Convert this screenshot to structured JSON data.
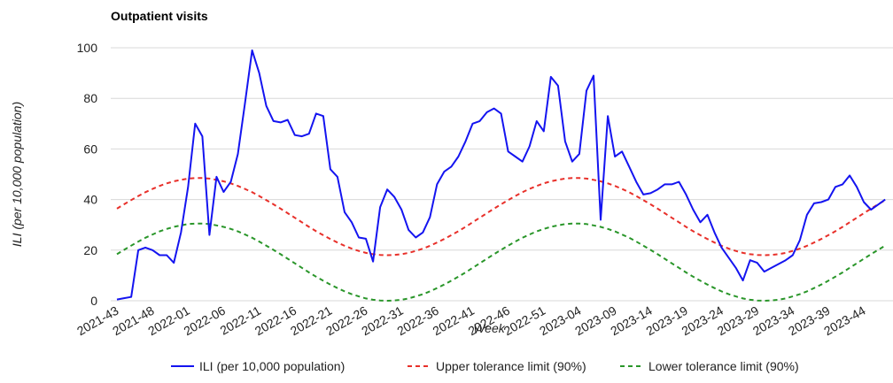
{
  "chart_data": {
    "type": "line",
    "title": "Outpatient visits",
    "x_label": "Week",
    "y_label": "ILI (per 10,000 population)",
    "categories": [
      "2021-43",
      null,
      null,
      null,
      null,
      "2021-48",
      null,
      null,
      null,
      null,
      "2022-01",
      null,
      null,
      null,
      null,
      "2022-06",
      null,
      null,
      null,
      null,
      "2022-11",
      null,
      null,
      null,
      null,
      "2022-16",
      null,
      null,
      null,
      null,
      "2022-21",
      null,
      null,
      null,
      null,
      "2022-26",
      null,
      null,
      null,
      null,
      "2022-31",
      null,
      null,
      null,
      null,
      "2022-36",
      null,
      null,
      null,
      null,
      "2022-41",
      null,
      null,
      null,
      null,
      "2022-46",
      null,
      null,
      null,
      null,
      "2022-51",
      null,
      null,
      null,
      null,
      "2023-04",
      null,
      null,
      null,
      null,
      "2023-09",
      null,
      null,
      null,
      null,
      "2023-14",
      null,
      null,
      null,
      null,
      "2023-19",
      null,
      null,
      null,
      null,
      "2023-24",
      null,
      null,
      null,
      null,
      "2023-29",
      null,
      null,
      null,
      null,
      "2023-34",
      null,
      null,
      null,
      null,
      "2023-39",
      null,
      null,
      null,
      null,
      "2023-44",
      null,
      null,
      null
    ],
    "series": [
      {
        "name": "ILI (per 10,000 population)",
        "color": "#1414f0",
        "line_style": "solid",
        "values": [
          0.5,
          1,
          1.5,
          20,
          21,
          20,
          18,
          18,
          15,
          27,
          45,
          70,
          65,
          26,
          49,
          43,
          47,
          58,
          78,
          99,
          90,
          77,
          71,
          70.5,
          71.5,
          65.5,
          65,
          66,
          74,
          73,
          52,
          49,
          35,
          31,
          25,
          24.5,
          15.5,
          37,
          44,
          41,
          36,
          28,
          25,
          27,
          33,
          46,
          51,
          53,
          57,
          63,
          70,
          71,
          74.5,
          76,
          74,
          59,
          57,
          55,
          61,
          71,
          67,
          88.5,
          85,
          63,
          55,
          58,
          83,
          89,
          32,
          73,
          57,
          59,
          53,
          47,
          42,
          42.5,
          44,
          46,
          46,
          47,
          42,
          36,
          31,
          34,
          27,
          21,
          17,
          13,
          8,
          16,
          15,
          11.5,
          13,
          14.5,
          16,
          18,
          24,
          34,
          38.5,
          39,
          40,
          45,
          46,
          49.5,
          45,
          39,
          36,
          38,
          40
        ]
      },
      {
        "name": "Upper tolerance limit (90%)",
        "color": "#e8302a",
        "line_style": "dashed",
        "values": [
          36.4,
          38.1,
          39.8,
          41.4,
          42.9,
          44.2,
          45.4,
          46.4,
          47.2,
          47.8,
          48.3,
          48.5,
          48.5,
          48.3,
          47.8,
          47.2,
          46.4,
          45.4,
          44.2,
          42.9,
          41.4,
          39.8,
          38.1,
          36.4,
          34.6,
          32.8,
          31,
          29.2,
          27.5,
          25.9,
          24.4,
          23,
          21.7,
          20.6,
          19.7,
          18.9,
          18.4,
          18.1,
          18,
          18.1,
          18.4,
          18.9,
          19.7,
          20.6,
          21.7,
          23,
          24.4,
          25.9,
          27.5,
          29.2,
          31,
          32.8,
          34.6,
          36.4,
          38.1,
          39.8,
          41.4,
          42.9,
          44.2,
          45.4,
          46.4,
          47.2,
          47.8,
          48.3,
          48.5,
          48.5,
          48.3,
          47.8,
          47.2,
          46.4,
          45.4,
          44.2,
          42.9,
          41.4,
          39.8,
          38.1,
          36.4,
          34.6,
          32.8,
          31,
          29.2,
          27.5,
          25.9,
          24.4,
          23,
          21.7,
          20.6,
          19.7,
          18.9,
          18.4,
          18.1,
          18,
          18.1,
          18.4,
          18.9,
          19.7,
          20.6,
          21.7,
          23,
          24.4,
          25.9,
          27.5,
          29.2,
          31,
          32.8,
          34.6,
          36.4,
          38.1,
          39.8
        ]
      },
      {
        "name": "Lower tolerance limit (90%)",
        "color": "#2a962a",
        "line_style": "dashed",
        "values": [
          18.4,
          20.1,
          21.8,
          23.4,
          24.9,
          26.2,
          27.4,
          28.4,
          29.2,
          29.8,
          30.3,
          30.5,
          30.5,
          30.3,
          29.8,
          29.2,
          28.4,
          27.4,
          26.2,
          24.9,
          23.4,
          21.8,
          20.1,
          18.4,
          16.6,
          14.8,
          13.0,
          11.2,
          9.5,
          7.9,
          6.4,
          5.0,
          3.7,
          2.6,
          1.7,
          0.9,
          0.4,
          0.1,
          0,
          0.1,
          0.4,
          0.9,
          1.7,
          2.6,
          3.7,
          5.0,
          6.4,
          7.9,
          9.5,
          11.2,
          13.0,
          14.8,
          16.6,
          18.4,
          20.1,
          21.8,
          23.4,
          24.9,
          26.2,
          27.4,
          28.4,
          29.2,
          29.8,
          30.3,
          30.5,
          30.5,
          30.3,
          29.8,
          29.2,
          28.4,
          27.4,
          26.2,
          24.9,
          23.4,
          21.8,
          20.1,
          18.4,
          16.6,
          14.8,
          13.0,
          11.2,
          9.5,
          7.9,
          6.4,
          5.0,
          3.7,
          2.6,
          1.7,
          0.9,
          0.4,
          0.1,
          0,
          0.1,
          0.4,
          0.9,
          1.7,
          2.6,
          3.7,
          5.0,
          6.4,
          7.9,
          9.5,
          11.2,
          13.0,
          14.8,
          16.6,
          18.4,
          20.1,
          21.8
        ]
      }
    ],
    "ylim": [
      0,
      100
    ],
    "yticks": [
      0,
      20,
      40,
      60,
      80,
      100
    ],
    "grid": true,
    "legend": "bottom"
  }
}
